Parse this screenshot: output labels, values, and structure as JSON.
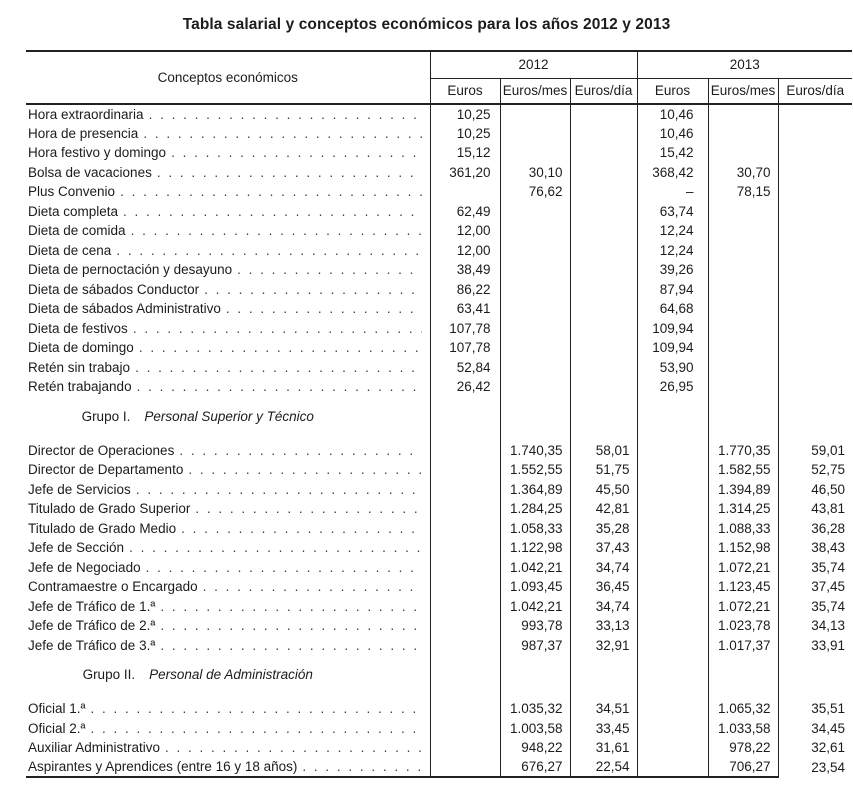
{
  "title": "Tabla salarial y conceptos económicos para los años 2012 y 2013",
  "table": {
    "concepts_header": "Conceptos económicos",
    "year_headers": [
      "2012",
      "2013"
    ],
    "unit_headers": [
      "Euros",
      "Euros/mes",
      "Euros/día"
    ],
    "sections": [
      {
        "heading": null,
        "rows": [
          {
            "label": "Hora extraordinaria",
            "values": [
              "10,25",
              "",
              "",
              "10,46",
              "",
              ""
            ]
          },
          {
            "label": "Hora de presencia",
            "values": [
              "10,25",
              "",
              "",
              "10,46",
              "",
              ""
            ]
          },
          {
            "label": "Hora festivo y domingo",
            "values": [
              "15,12",
              "",
              "",
              "15,42",
              "",
              ""
            ]
          },
          {
            "label": "Bolsa de vacaciones",
            "values": [
              "361,20",
              "30,10",
              "",
              "368,42",
              "30,70",
              ""
            ]
          },
          {
            "label": "Plus Convenio",
            "values": [
              "",
              "76,62",
              "",
              "–",
              "78,15",
              ""
            ]
          },
          {
            "label": "Dieta completa",
            "values": [
              "62,49",
              "",
              "",
              "63,74",
              "",
              ""
            ]
          },
          {
            "label": "Dieta de comida",
            "values": [
              "12,00",
              "",
              "",
              "12,24",
              "",
              ""
            ]
          },
          {
            "label": "Dieta de cena",
            "values": [
              "12,00",
              "",
              "",
              "12,24",
              "",
              ""
            ]
          },
          {
            "label": "Dieta de pernoctación y desayuno",
            "values": [
              "38,49",
              "",
              "",
              "39,26",
              "",
              ""
            ]
          },
          {
            "label": "Dieta de sábados Conductor",
            "values": [
              "86,22",
              "",
              "",
              "87,94",
              "",
              ""
            ]
          },
          {
            "label": "Dieta de sábados Administrativo",
            "values": [
              "63,41",
              "",
              "",
              "64,68",
              "",
              ""
            ]
          },
          {
            "label": "Dieta de festivos",
            "values": [
              "107,78",
              "",
              "",
              "109,94",
              "",
              ""
            ]
          },
          {
            "label": "Dieta de domingo",
            "values": [
              "107,78",
              "",
              "",
              "109,94",
              "",
              ""
            ]
          },
          {
            "label": "Retén sin trabajo",
            "values": [
              "52,84",
              "",
              "",
              "53,90",
              "",
              ""
            ]
          },
          {
            "label": "Retén trabajando",
            "values": [
              "26,42",
              "",
              "",
              "26,95",
              "",
              ""
            ]
          }
        ]
      },
      {
        "heading": {
          "group": "Grupo I.",
          "name": "Personal Superior y Técnico"
        },
        "rows": [
          {
            "label": "Director de Operaciones",
            "values": [
              "",
              "1.740,35",
              "58,01",
              "",
              "1.770,35",
              "59,01"
            ]
          },
          {
            "label": "Director de Departamento",
            "values": [
              "",
              "1.552,55",
              "51,75",
              "",
              "1.582,55",
              "52,75"
            ]
          },
          {
            "label": "Jefe de Servicios",
            "values": [
              "",
              "1.364,89",
              "45,50",
              "",
              "1.394,89",
              "46,50"
            ]
          },
          {
            "label": "Titulado de Grado Superior",
            "values": [
              "",
              "1.284,25",
              "42,81",
              "",
              "1.314,25",
              "43,81"
            ]
          },
          {
            "label": "Titulado de Grado Medio",
            "values": [
              "",
              "1.058,33",
              "35,28",
              "",
              "1.088,33",
              "36,28"
            ]
          },
          {
            "label": "Jefe de Sección",
            "values": [
              "",
              "1.122,98",
              "37,43",
              "",
              "1.152,98",
              "38,43"
            ]
          },
          {
            "label": "Jefe de Negociado",
            "values": [
              "",
              "1.042,21",
              "34,74",
              "",
              "1.072,21",
              "35,74"
            ]
          },
          {
            "label": "Contramaestre o Encargado",
            "values": [
              "",
              "1.093,45",
              "36,45",
              "",
              "1.123,45",
              "37,45"
            ]
          },
          {
            "label": "Jefe de Tráfico de 1.ª",
            "values": [
              "",
              "1.042,21",
              "34,74",
              "",
              "1.072,21",
              "35,74"
            ]
          },
          {
            "label": "Jefe de Tráfico de 2.ª",
            "values": [
              "",
              "993,78",
              "33,13",
              "",
              "1.023,78",
              "34,13"
            ]
          },
          {
            "label": "Jefe de Tráfico de 3.ª",
            "values": [
              "",
              "987,37",
              "32,91",
              "",
              "1.017,37",
              "33,91"
            ]
          }
        ]
      },
      {
        "heading": {
          "group": "Grupo II.",
          "name": "Personal de Administración"
        },
        "rows": [
          {
            "label": "Oficial 1.ª",
            "values": [
              "",
              "1.035,32",
              "34,51",
              "",
              "1.065,32",
              "35,51"
            ]
          },
          {
            "label": "Oficial 2.ª",
            "values": [
              "",
              "1.003,58",
              "33,45",
              "",
              "1.033,58",
              "34,45"
            ]
          },
          {
            "label": "Auxiliar Administrativo",
            "values": [
              "",
              "948,22",
              "31,61",
              "",
              "978,22",
              "32,61"
            ]
          },
          {
            "label": "Aspirantes y Aprendices (entre 16 y 18 años)",
            "values": [
              "",
              "676,27",
              "22,54",
              "",
              "706,27",
              "23,54"
            ]
          }
        ]
      }
    ]
  }
}
